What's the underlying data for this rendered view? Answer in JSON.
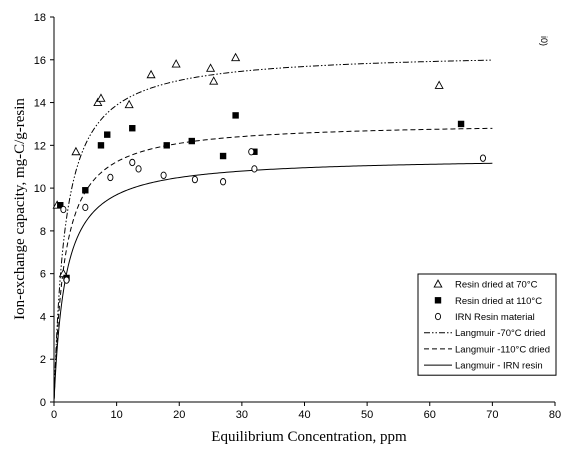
{
  "chart_data": {
    "type": "scatter",
    "xlabel": "Equilibrium Concentration, ppm",
    "ylabel": "Ion-exchange capacity, mg-C/g-resin",
    "xlim": [
      0,
      80
    ],
    "ylim": [
      0,
      18
    ],
    "xticks": [
      0,
      10,
      20,
      30,
      40,
      50,
      60,
      70,
      80
    ],
    "yticks": [
      0,
      2,
      4,
      6,
      8,
      10,
      12,
      14,
      16,
      18
    ],
    "grid": false,
    "legend_position": "bottom-right",
    "annotation": "i0)",
    "series": [
      {
        "name": "Resin  dried at 70°C",
        "kind": "marker",
        "marker": "triangle",
        "points": [
          [
            0.5,
            9.2
          ],
          [
            1.5,
            6.0
          ],
          [
            3.5,
            11.7
          ],
          [
            7.0,
            14.0
          ],
          [
            7.5,
            14.2
          ],
          [
            12.0,
            13.9
          ],
          [
            15.5,
            15.3
          ],
          [
            19.5,
            15.8
          ],
          [
            25.0,
            15.6
          ],
          [
            25.5,
            15.0
          ],
          [
            29.0,
            16.1
          ],
          [
            61.5,
            14.8
          ]
        ]
      },
      {
        "name": "Resin  dried at 110°C",
        "kind": "marker",
        "marker": "square",
        "points": [
          [
            1.0,
            9.2
          ],
          [
            2.0,
            5.8
          ],
          [
            5.0,
            9.9
          ],
          [
            7.5,
            12.0
          ],
          [
            8.5,
            12.5
          ],
          [
            12.5,
            12.8
          ],
          [
            18.0,
            12.0
          ],
          [
            22.0,
            12.2
          ],
          [
            27.0,
            11.5
          ],
          [
            29.0,
            13.4
          ],
          [
            32.0,
            11.7
          ],
          [
            65.0,
            13.0
          ]
        ]
      },
      {
        "name": "IRN Resin  material",
        "kind": "marker",
        "marker": "circle",
        "points": [
          [
            1.5,
            9.0
          ],
          [
            2.0,
            5.7
          ],
          [
            5.0,
            9.1
          ],
          [
            9.0,
            10.5
          ],
          [
            12.5,
            11.2
          ],
          [
            13.5,
            10.9
          ],
          [
            17.5,
            10.6
          ],
          [
            22.5,
            10.4
          ],
          [
            27.0,
            10.3
          ],
          [
            31.5,
            11.7
          ],
          [
            32.0,
            10.9
          ],
          [
            68.5,
            11.4
          ]
        ]
      },
      {
        "name": "Langmuir -70°C dried",
        "kind": "line",
        "dash": "dash-dot-dot",
        "qmax": 16.4,
        "K": 0.55
      },
      {
        "name": "Langmuir -110°C dried",
        "kind": "line",
        "dash": "dash",
        "qmax": 13.1,
        "K": 0.6
      },
      {
        "name": "Langmuir - IRN  resin",
        "kind": "line",
        "dash": "solid",
        "qmax": 11.45,
        "K": 0.55
      }
    ]
  }
}
